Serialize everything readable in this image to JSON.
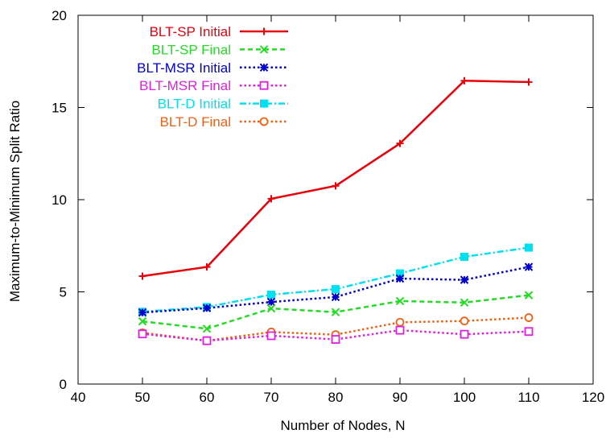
{
  "chart_data": {
    "type": "line",
    "title": "",
    "xlabel": "Number of Nodes, N",
    "ylabel": "Maximum-to-Minimum Split Ratio",
    "xlim": [
      40,
      120
    ],
    "ylim": [
      0,
      20
    ],
    "xticks": [
      40,
      50,
      60,
      70,
      80,
      90,
      100,
      110,
      120
    ],
    "yticks": [
      0,
      5,
      10,
      15,
      20
    ],
    "grid": false,
    "legend_position": "top-left",
    "x": [
      50,
      60,
      70,
      80,
      90,
      100,
      110
    ],
    "series": [
      {
        "name": "BLT-SP Initial",
        "color": "#e8000b",
        "dash": "solid",
        "marker": "plus",
        "values": [
          5.85,
          6.35,
          10.05,
          10.75,
          13.05,
          16.45,
          16.38
        ]
      },
      {
        "name": "BLT-SP Final",
        "color": "#22dd22",
        "dash": "dashed",
        "marker": "cross",
        "values": [
          3.4,
          3.0,
          4.1,
          3.9,
          4.5,
          4.42,
          4.82
        ]
      },
      {
        "name": "BLT-MSR Initial",
        "color": "#0000cc",
        "dash": "dotted",
        "marker": "star",
        "values": [
          3.88,
          4.12,
          4.45,
          4.72,
          5.72,
          5.65,
          6.35
        ]
      },
      {
        "name": "BLT-MSR Final",
        "color": "#e020e0",
        "dash": "dotted",
        "marker": "square-open",
        "values": [
          2.72,
          2.35,
          2.62,
          2.42,
          2.92,
          2.7,
          2.85
        ]
      },
      {
        "name": "BLT-D Initial",
        "color": "#00e0f0",
        "dash": "dash-dot",
        "marker": "square-filled",
        "values": [
          3.92,
          4.18,
          4.85,
          5.15,
          6.0,
          6.9,
          7.4
        ]
      },
      {
        "name": "BLT-D Final",
        "color": "#f06010",
        "dash": "dotted",
        "marker": "circle-open",
        "values": [
          2.78,
          2.35,
          2.82,
          2.68,
          3.35,
          3.42,
          3.6
        ]
      }
    ]
  }
}
